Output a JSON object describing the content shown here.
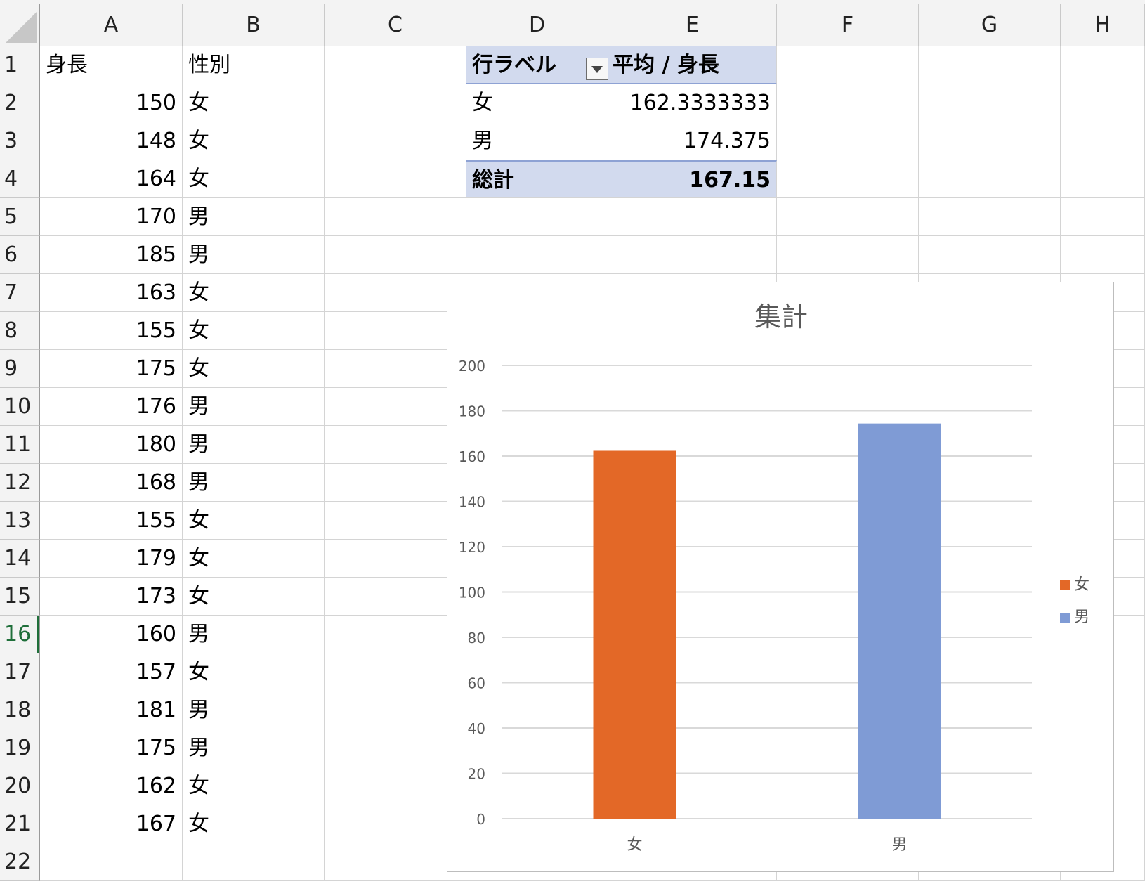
{
  "columns": [
    "A",
    "B",
    "C",
    "D",
    "E",
    "F",
    "G",
    "H"
  ],
  "rows": [
    "1",
    "2",
    "3",
    "4",
    "5",
    "6",
    "7",
    "8",
    "9",
    "10",
    "11",
    "12",
    "13",
    "14",
    "15",
    "16",
    "17",
    "18",
    "19",
    "20",
    "21",
    "22"
  ],
  "active_row": "16",
  "data_header": {
    "a": "身長",
    "b": "性別"
  },
  "data_rows": [
    {
      "height": "150",
      "sex": "女"
    },
    {
      "height": "148",
      "sex": "女"
    },
    {
      "height": "164",
      "sex": "女"
    },
    {
      "height": "170",
      "sex": "男"
    },
    {
      "height": "185",
      "sex": "男"
    },
    {
      "height": "163",
      "sex": "女"
    },
    {
      "height": "155",
      "sex": "女"
    },
    {
      "height": "175",
      "sex": "女"
    },
    {
      "height": "176",
      "sex": "男"
    },
    {
      "height": "180",
      "sex": "男"
    },
    {
      "height": "168",
      "sex": "男"
    },
    {
      "height": "155",
      "sex": "女"
    },
    {
      "height": "179",
      "sex": "女"
    },
    {
      "height": "173",
      "sex": "女"
    },
    {
      "height": "160",
      "sex": "男"
    },
    {
      "height": "157",
      "sex": "女"
    },
    {
      "height": "181",
      "sex": "男"
    },
    {
      "height": "175",
      "sex": "男"
    },
    {
      "height": "162",
      "sex": "女"
    },
    {
      "height": "167",
      "sex": "女"
    }
  ],
  "pivot": {
    "row_label": "行ラベル",
    "value_label": "平均 / 身長",
    "rows": [
      {
        "label": "女",
        "value": "162.3333333"
      },
      {
        "label": "男",
        "value": "174.375"
      }
    ],
    "total_label": "総計",
    "total_value": "167.15"
  },
  "chart_data": {
    "type": "bar",
    "title": "集計",
    "categories": [
      "女",
      "男"
    ],
    "values": [
      162.3333333,
      174.375
    ],
    "colors": [
      "#e36827",
      "#7f9bd5"
    ],
    "ylim": [
      0,
      200
    ],
    "yticks": [
      "0",
      "20",
      "40",
      "60",
      "80",
      "100",
      "120",
      "140",
      "160",
      "180",
      "200"
    ],
    "legend": {
      "position": "right",
      "entries": [
        "女",
        "男"
      ]
    },
    "grid": true
  }
}
